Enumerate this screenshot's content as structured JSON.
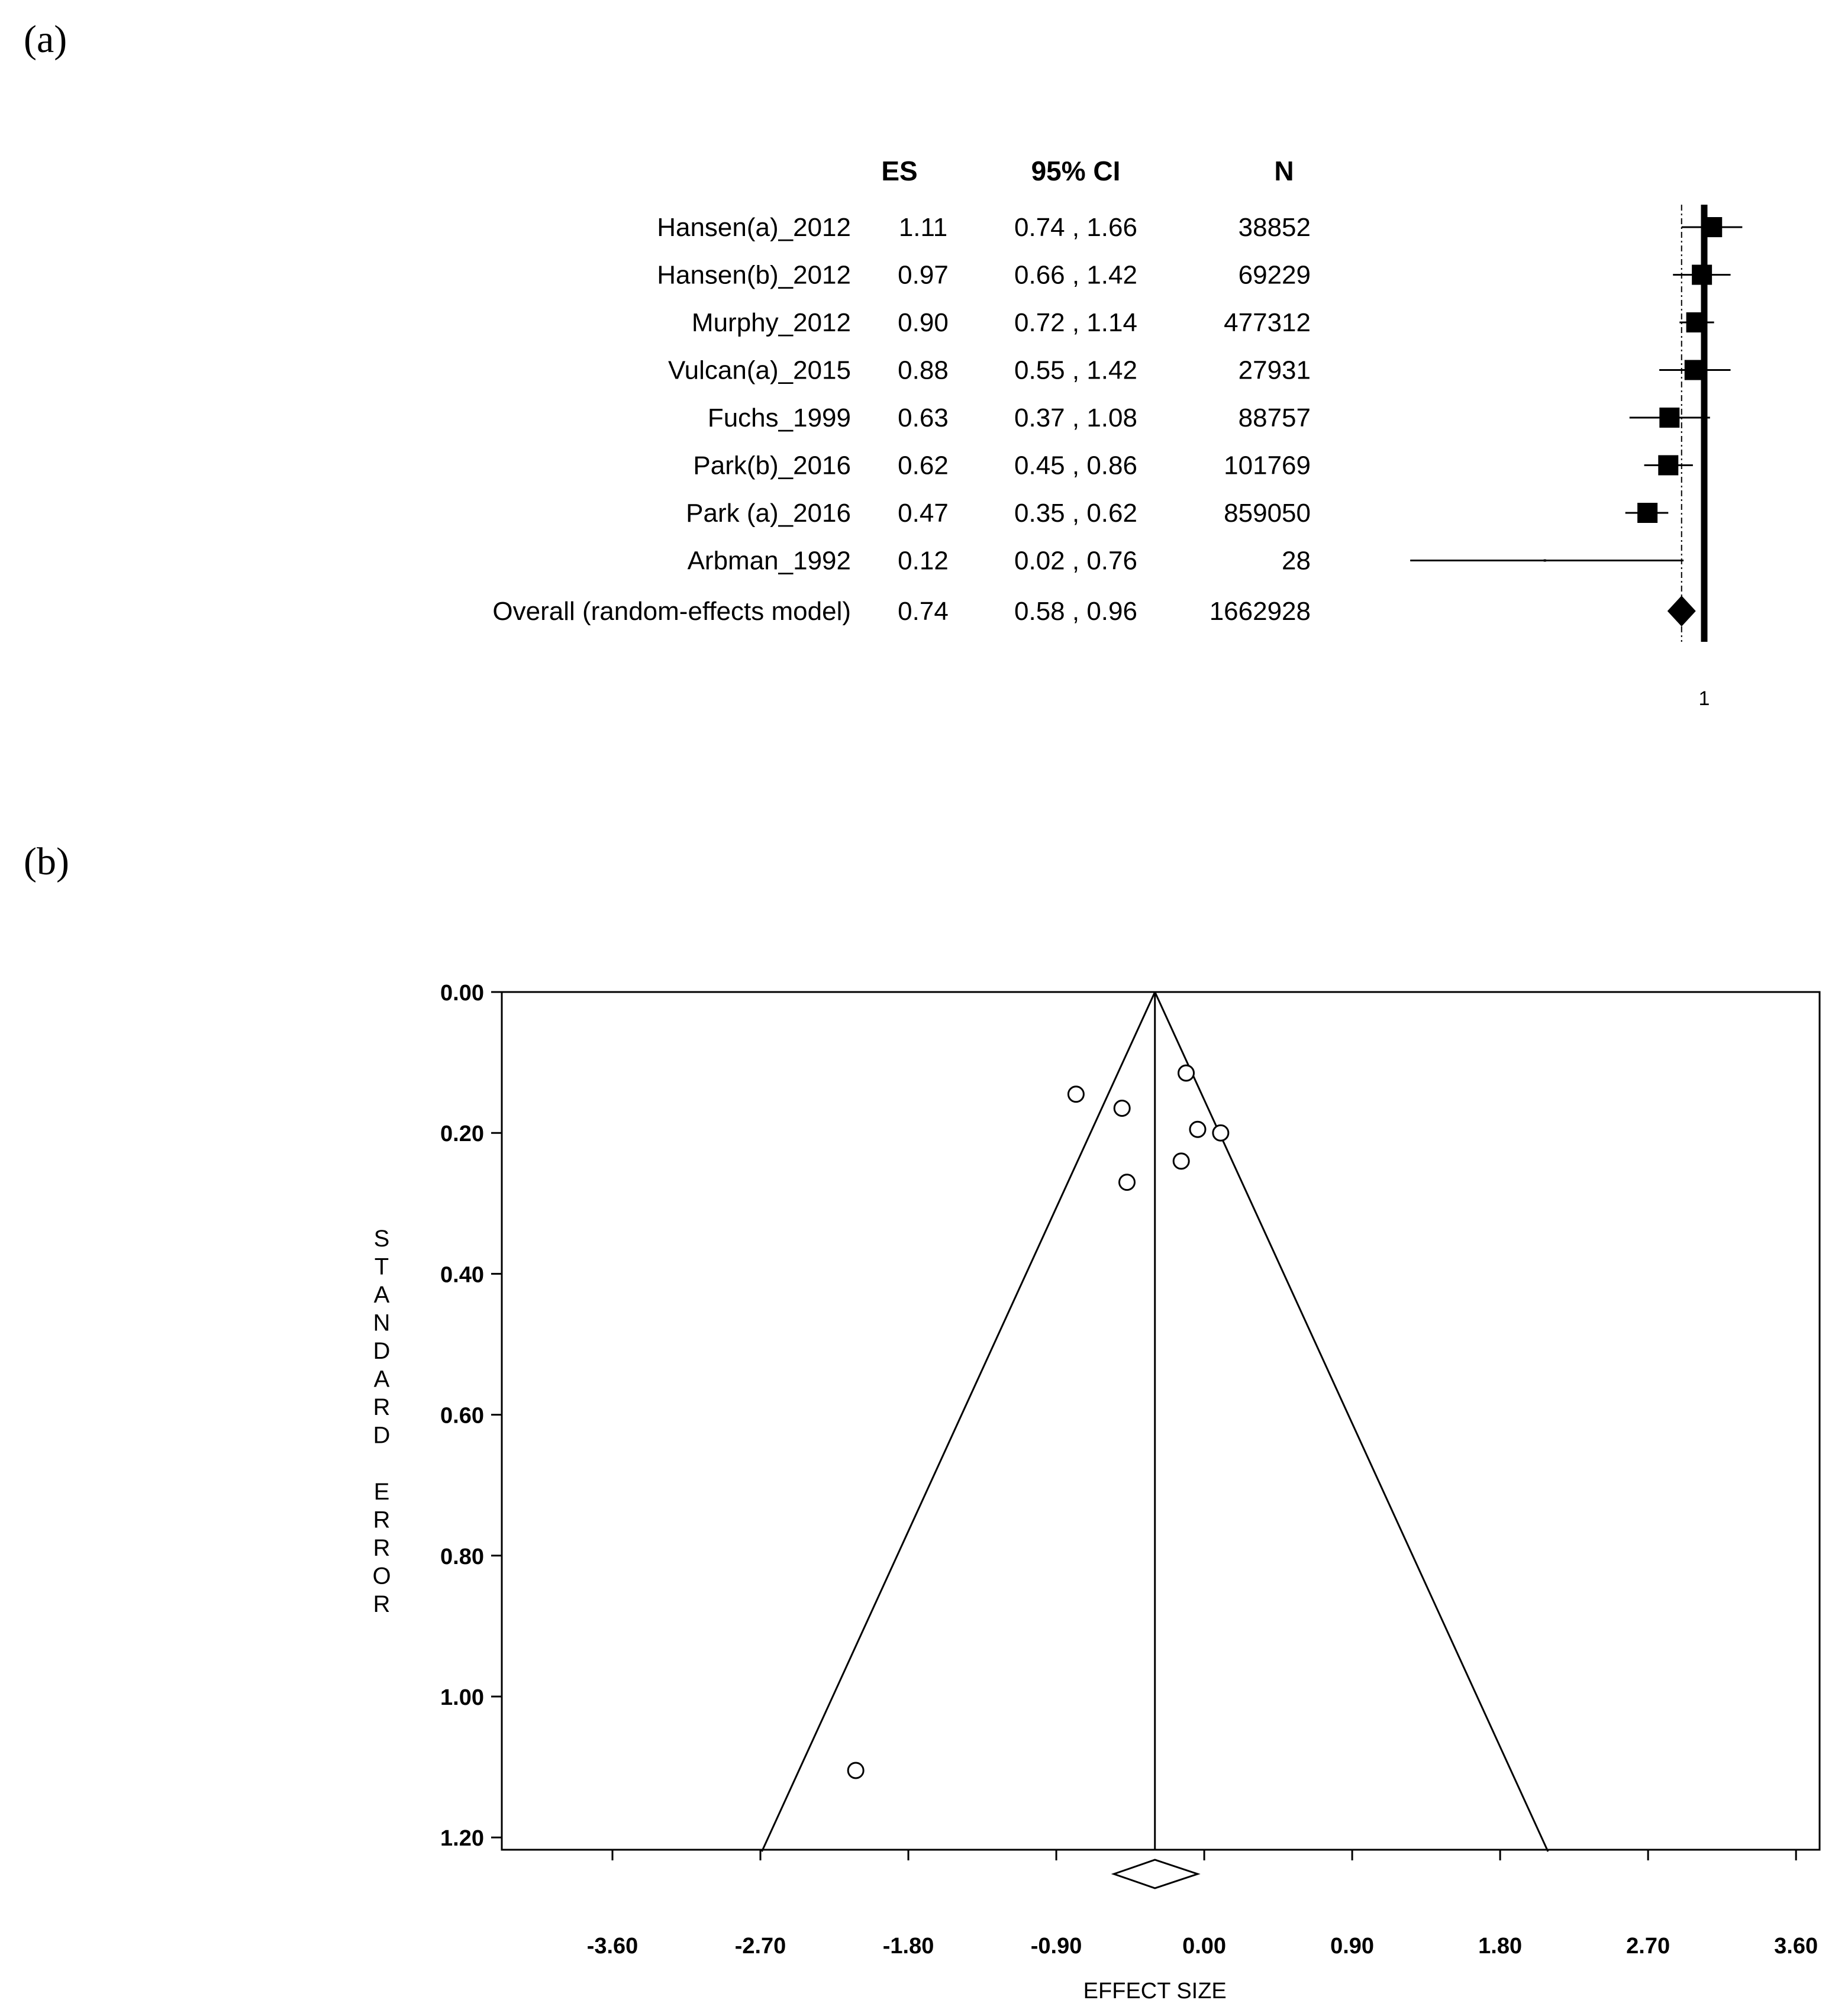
{
  "chart_data": [
    {
      "panel": "(a)",
      "type": "forest",
      "columns": {
        "es": "ES",
        "ci": "95% CI",
        "n": "N"
      },
      "rows": [
        {
          "study": "Hansen(a)_2012",
          "es": 1.11,
          "ci_low": 0.74,
          "ci_high": 1.66,
          "es_text": "1.11",
          "ci_text": "0.74 , 1.66",
          "n": "38852"
        },
        {
          "study": "Hansen(b)_2012",
          "es": 0.97,
          "ci_low": 0.66,
          "ci_high": 1.42,
          "es_text": "0.97",
          "ci_text": "0.66 , 1.42",
          "n": "69229"
        },
        {
          "study": "Murphy_2012",
          "es": 0.9,
          "ci_low": 0.72,
          "ci_high": 1.14,
          "es_text": "0.90",
          "ci_text": "0.72 , 1.14",
          "n": "477312"
        },
        {
          "study": "Vulcan(a)_2015",
          "es": 0.88,
          "ci_low": 0.55,
          "ci_high": 1.42,
          "es_text": "0.88",
          "ci_text": "0.55 , 1.42",
          "n": "27931"
        },
        {
          "study": "Fuchs_1999",
          "es": 0.63,
          "ci_low": 0.37,
          "ci_high": 1.08,
          "es_text": "0.63",
          "ci_text": "0.37 , 1.08",
          "n": "88757"
        },
        {
          "study": "Park(b)_2016",
          "es": 0.62,
          "ci_low": 0.45,
          "ci_high": 0.86,
          "es_text": "0.62",
          "ci_text": "0.45 , 0.86",
          "n": "101769"
        },
        {
          "study": "Park (a)_2016",
          "es": 0.47,
          "ci_low": 0.35,
          "ci_high": 0.62,
          "es_text": "0.47",
          "ci_text": "0.35 , 0.62",
          "n": "859050"
        },
        {
          "study": "Arbman_1992",
          "es": 0.12,
          "ci_low": 0.02,
          "ci_high": 0.76,
          "es_text": "0.12",
          "ci_text": "0.02 , 0.76",
          "n": "28"
        }
      ],
      "overall": {
        "study": "Overall (random-effects model)",
        "es": 0.74,
        "ci_low": 0.58,
        "ci_high": 0.96,
        "es_text": "0.74",
        "ci_text": "0.58 , 0.96",
        "n": "1662928"
      },
      "null_value": 1,
      "null_label": "1"
    },
    {
      "panel": "(b)",
      "type": "funnel",
      "xlabel": "EFFECT SIZE",
      "ylabel": "STANDARD ERROR",
      "xlim": [
        -4.3,
        3.6
      ],
      "ylim": [
        0,
        1.22
      ],
      "xticks": [
        -3.6,
        -2.7,
        -1.8,
        -0.9,
        0.0,
        0.9,
        1.8,
        2.7,
        3.6
      ],
      "xtick_labels": [
        "-3.60",
        "-2.70",
        "-1.80",
        "-0.90",
        "0.00",
        "0.90",
        "1.80",
        "2.70",
        "3.60"
      ],
      "yticks": [
        0.0,
        0.2,
        0.4,
        0.6,
        0.8,
        1.0,
        1.2
      ],
      "ytick_labels": [
        "0.00",
        "0.20",
        "0.40",
        "0.60",
        "0.80",
        "1.00",
        "1.20"
      ],
      "pooled_effect": -0.3,
      "funnel_z": 1.96,
      "points": [
        {
          "x": -0.78,
          "y": 0.145
        },
        {
          "x": -0.5,
          "y": 0.165
        },
        {
          "x": -0.11,
          "y": 0.115
        },
        {
          "x": -0.04,
          "y": 0.195
        },
        {
          "x": 0.1,
          "y": 0.2
        },
        {
          "x": -0.14,
          "y": 0.24
        },
        {
          "x": -0.47,
          "y": 0.27
        },
        {
          "x": -2.12,
          "y": 1.105
        }
      ],
      "summary_diamond": {
        "center": -0.3,
        "low": -0.55,
        "high": -0.04
      }
    }
  ]
}
